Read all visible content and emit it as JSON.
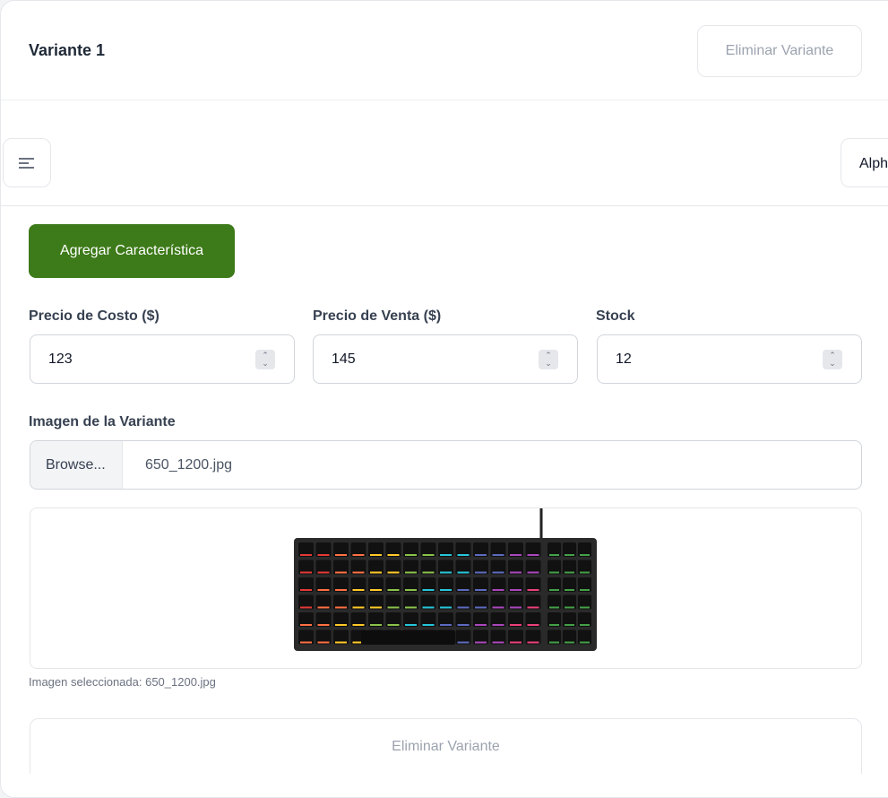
{
  "variant": {
    "title": "Variante 1",
    "delete_top": "Eliminar Variante",
    "delete_bottom": "Eliminar Variante"
  },
  "topbar": {
    "menu_icon": "menu-icon",
    "right_button": "Alph"
  },
  "add_feature_label": "Agregar Característica",
  "fields": [
    {
      "label": "Precio de Costo ($)",
      "value": "123"
    },
    {
      "label": "Precio de Venta ($)",
      "value": "145"
    },
    {
      "label": "Stock",
      "value": "12"
    }
  ],
  "image": {
    "label": "Imagen de la Variante",
    "browse": "Browse...",
    "file_name": "650_1200.jpg",
    "caption": "Imagen seleccionada: 650_1200.jpg"
  },
  "colors": {
    "accent": "#3d7a19"
  }
}
